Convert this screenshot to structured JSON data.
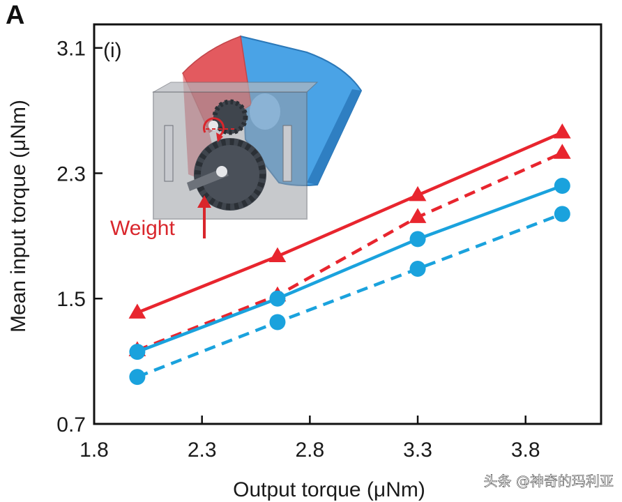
{
  "panel_label": "A",
  "watermark": "头条 @神奇的玛利亚",
  "inset": {
    "label": "(i)",
    "annotation": "Weight",
    "colors": {
      "red": "#e35a5f",
      "blue": "#4aa3e6",
      "housing": "#8a8d94",
      "gear": "#444a52"
    }
  },
  "chart_data": {
    "type": "line",
    "xlabel": "Output torque (μNm)",
    "ylabel": "Mean input torque (μNm)",
    "xlim": [
      1.8,
      4.15
    ],
    "ylim": [
      0.7,
      3.25
    ],
    "xticks": [
      1.8,
      2.3,
      2.8,
      3.3,
      3.8
    ],
    "xtick_labels": [
      "1.8",
      "2.3",
      "2.8",
      "3.3",
      "3.8"
    ],
    "yticks": [
      0.7,
      1.5,
      2.3,
      3.1
    ],
    "ytick_labels": [
      "0.7",
      "1.5",
      "2.3",
      "3.1"
    ],
    "grid": false,
    "x": [
      2.0,
      2.65,
      3.3,
      3.97
    ],
    "series": [
      {
        "name": "red solid",
        "color": "#e8252e",
        "dash": false,
        "marker": "triangle",
        "values": [
          1.41,
          1.77,
          2.16,
          2.56
        ]
      },
      {
        "name": "red dashed",
        "color": "#e8252e",
        "dash": true,
        "marker": "triangle",
        "values": [
          1.17,
          1.52,
          2.02,
          2.43
        ]
      },
      {
        "name": "blue solid",
        "color": "#1aa2dd",
        "dash": false,
        "marker": "circle",
        "values": [
          1.16,
          1.5,
          1.88,
          2.22
        ]
      },
      {
        "name": "blue dashed",
        "color": "#1aa2dd",
        "dash": true,
        "marker": "circle",
        "values": [
          1.0,
          1.35,
          1.69,
          2.04
        ]
      }
    ]
  }
}
